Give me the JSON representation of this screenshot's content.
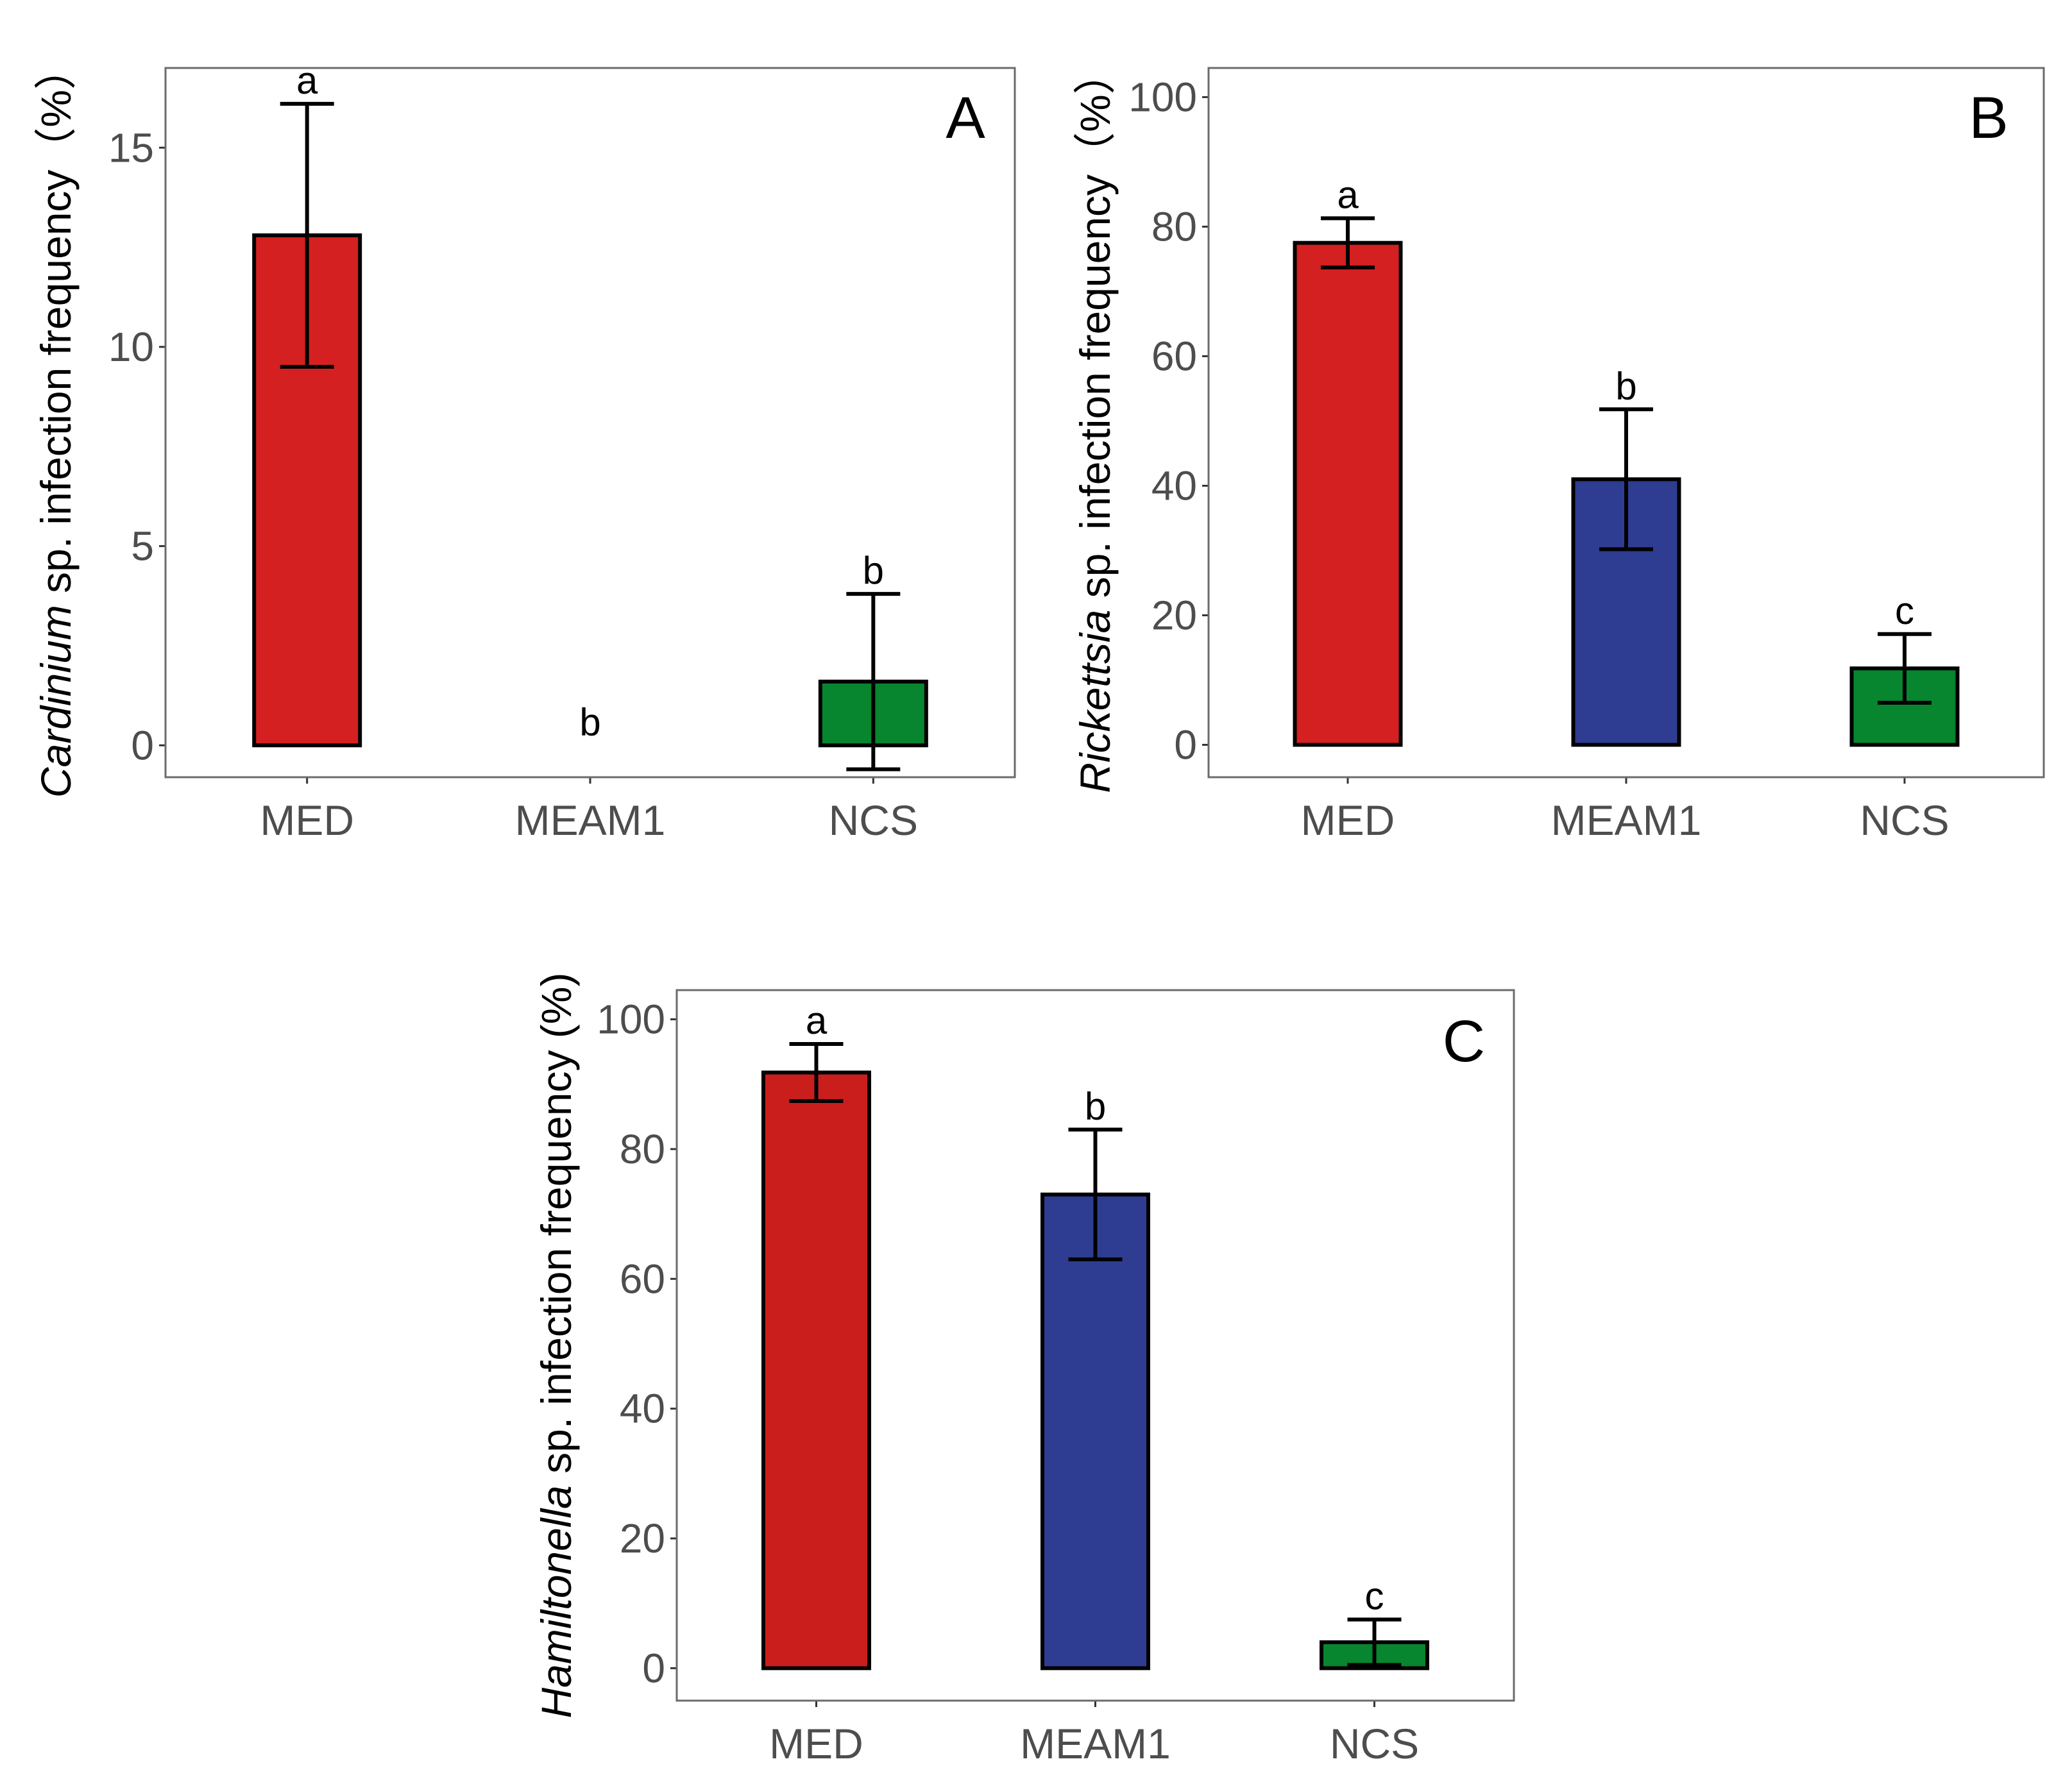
{
  "chart_data": [
    {
      "type": "bar",
      "panel": "A",
      "categories": [
        "MED",
        "MEAM1",
        "NCS"
      ],
      "values": [
        12.8,
        0,
        1.6
      ],
      "errors": [
        3.3,
        0,
        2.2
      ],
      "significance": [
        "a",
        "b",
        "b"
      ],
      "colors": [
        "#d42020",
        "#2e3d92",
        "#07852f"
      ],
      "ylabel_italic": "Cardinium",
      "ylabel_rest": " sp. infection frequency（%）",
      "yticks": [
        0,
        5,
        10,
        15
      ],
      "ytick_labels": [
        "0",
        "5",
        "10",
        "15"
      ],
      "ylim": [
        -0.8,
        17
      ],
      "grid": false
    },
    {
      "type": "bar",
      "panel": "B",
      "categories": [
        "MED",
        "MEAM1",
        "NCS"
      ],
      "values": [
        77.5,
        41,
        11.8
      ],
      "errors": [
        3.8,
        10.8,
        5.3
      ],
      "significance": [
        "a",
        "b",
        "c"
      ],
      "colors": [
        "#d42020",
        "#2e3d92",
        "#07852f"
      ],
      "ylabel_italic": "Rickettsia",
      "ylabel_rest": " sp. infection frequency（%）",
      "yticks": [
        0,
        20,
        40,
        60,
        80,
        100
      ],
      "ytick_labels": [
        "0",
        "20",
        "40",
        "60",
        "80",
        "100"
      ],
      "ylim": [
        -5,
        104.5
      ],
      "grid": false
    },
    {
      "type": "bar",
      "panel": "C",
      "categories": [
        "MED",
        "MEAM1",
        "NCS"
      ],
      "values": [
        91.8,
        73,
        4
      ],
      "errors": [
        4.4,
        10,
        3.5
      ],
      "significance": [
        "a",
        "b",
        "c"
      ],
      "colors": [
        "#ca1e1c",
        "#2e3d92",
        "#07852f"
      ],
      "ylabel_italic": "Hamiltonella",
      "ylabel_rest": " sp. infection frequency (%)",
      "yticks": [
        0,
        20,
        40,
        60,
        80,
        100
      ],
      "ytick_labels": [
        "0",
        "20",
        "40",
        "60",
        "80",
        "100"
      ],
      "ylim": [
        -5,
        104.5
      ],
      "grid": false
    }
  ]
}
